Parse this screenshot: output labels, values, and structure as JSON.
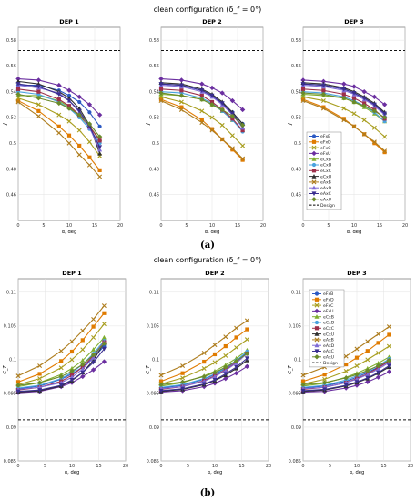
{
  "figure": {
    "title_a": "clean configuration (δ_f = 0°)",
    "title_b": "clean configuration (δ_f = 0°)",
    "caption_a": "(a)",
    "caption_b": "(b)"
  },
  "legend_labels": [
    "eFxB",
    "eFxD",
    "eFxC",
    "eFxU",
    "eCxB",
    "eCxD",
    "eCxC",
    "eCxU",
    "eAxB",
    "eAxD",
    "eAxC",
    "eAxU",
    "Design"
  ],
  "series_colors": [
    "#2b59c3",
    "#e07b00",
    "#a89e1f",
    "#6b2fa0",
    "#7fae2e",
    "#4aa3df",
    "#9d2f4a",
    "#2f2f2f",
    "#ae7d1e",
    "#7e6ad6",
    "#3a2e8f",
    "#6a8a2a",
    "#000000"
  ],
  "chart_data": [
    {
      "type": "line",
      "panel": "a1",
      "title": "DEP 1",
      "xlabel": "α, deg",
      "ylabel": "J",
      "xlim": [
        0,
        20
      ],
      "ylim": [
        0.44,
        0.59
      ],
      "yticks": [
        0.46,
        0.48,
        0.5,
        0.52,
        0.54,
        0.56,
        0.58
      ],
      "xticks": [
        0,
        5,
        10,
        15,
        20
      ],
      "x": [
        0,
        4,
        8,
        10,
        12,
        14,
        16
      ],
      "design": 0.572,
      "series": [
        {
          "name": "eFxB",
          "values": [
            0.545,
            0.545,
            0.541,
            0.537,
            0.532,
            0.524,
            0.513
          ]
        },
        {
          "name": "eFxD",
          "values": [
            0.533,
            0.525,
            0.513,
            0.506,
            0.498,
            0.489,
            0.479
          ]
        },
        {
          "name": "eFxC",
          "values": [
            0.535,
            0.53,
            0.522,
            0.517,
            0.51,
            0.501,
            0.49
          ]
        },
        {
          "name": "eFxU",
          "values": [
            0.55,
            0.549,
            0.545,
            0.541,
            0.536,
            0.53,
            0.522
          ]
        },
        {
          "name": "eCxB",
          "values": [
            0.537,
            0.537,
            0.533,
            0.528,
            0.521,
            0.513,
            0.503
          ]
        },
        {
          "name": "eCxD",
          "values": [
            0.54,
            0.538,
            0.532,
            0.527,
            0.52,
            0.511,
            0.5
          ]
        },
        {
          "name": "eCxC",
          "values": [
            0.542,
            0.54,
            0.534,
            0.529,
            0.522,
            0.513,
            0.502
          ]
        },
        {
          "name": "eCxU",
          "values": [
            0.548,
            0.546,
            0.54,
            0.535,
            0.527,
            0.514,
            0.492
          ]
        },
        {
          "name": "eAxB",
          "values": [
            0.532,
            0.521,
            0.508,
            0.5,
            0.491,
            0.483,
            0.474
          ]
        },
        {
          "name": "eAxD",
          "values": [
            0.545,
            0.543,
            0.539,
            0.533,
            0.524,
            0.512,
            0.495
          ]
        },
        {
          "name": "eAxC",
          "values": [
            0.546,
            0.544,
            0.538,
            0.533,
            0.525,
            0.513,
            0.497
          ]
        },
        {
          "name": "eAxU",
          "values": [
            0.538,
            0.535,
            0.531,
            0.527,
            0.522,
            0.515,
            0.505
          ]
        }
      ]
    },
    {
      "type": "line",
      "panel": "a2",
      "title": "DEP 2",
      "xlabel": "α, deg",
      "ylabel": "J",
      "xlim": [
        0,
        20
      ],
      "ylim": [
        0.44,
        0.59
      ],
      "yticks": [
        0.46,
        0.48,
        0.5,
        0.52,
        0.54,
        0.56,
        0.58
      ],
      "xticks": [
        0,
        5,
        10,
        15,
        20
      ],
      "x": [
        0,
        4,
        8,
        10,
        12,
        14,
        16
      ],
      "design": 0.572,
      "series": [
        {
          "name": "eFxB",
          "values": [
            0.546,
            0.545,
            0.541,
            0.537,
            0.531,
            0.524,
            0.515
          ]
        },
        {
          "name": "eFxD",
          "values": [
            0.534,
            0.528,
            0.518,
            0.511,
            0.503,
            0.495,
            0.487
          ]
        },
        {
          "name": "eFxC",
          "values": [
            0.536,
            0.532,
            0.525,
            0.52,
            0.514,
            0.506,
            0.498
          ]
        },
        {
          "name": "eFxU",
          "values": [
            0.55,
            0.549,
            0.546,
            0.543,
            0.539,
            0.533,
            0.526
          ]
        },
        {
          "name": "eCxB",
          "values": [
            0.538,
            0.537,
            0.534,
            0.53,
            0.525,
            0.518,
            0.51
          ]
        },
        {
          "name": "eCxD",
          "values": [
            0.54,
            0.539,
            0.535,
            0.531,
            0.525,
            0.518,
            0.509
          ]
        },
        {
          "name": "eCxC",
          "values": [
            0.542,
            0.541,
            0.537,
            0.532,
            0.526,
            0.519,
            0.51
          ]
        },
        {
          "name": "eCxU",
          "values": [
            0.547,
            0.546,
            0.542,
            0.538,
            0.532,
            0.524,
            0.515
          ]
        },
        {
          "name": "eAxB",
          "values": [
            0.533,
            0.526,
            0.516,
            0.51,
            0.503,
            0.496,
            0.488
          ]
        },
        {
          "name": "eAxD",
          "values": [
            0.545,
            0.544,
            0.54,
            0.536,
            0.53,
            0.522,
            0.512
          ]
        },
        {
          "name": "eAxC",
          "values": [
            0.546,
            0.545,
            0.541,
            0.537,
            0.531,
            0.523,
            0.513
          ]
        },
        {
          "name": "eAxU",
          "values": [
            0.539,
            0.537,
            0.534,
            0.53,
            0.526,
            0.521,
            0.514
          ]
        }
      ]
    },
    {
      "type": "line",
      "panel": "a3",
      "title": "DEP 3",
      "xlabel": "α, deg",
      "ylabel": "J",
      "xlim": [
        0,
        20
      ],
      "ylim": [
        0.44,
        0.59
      ],
      "yticks": [
        0.46,
        0.48,
        0.5,
        0.52,
        0.54,
        0.56,
        0.58
      ],
      "xticks": [
        0,
        5,
        10,
        15,
        20
      ],
      "x": [
        0,
        4,
        8,
        10,
        12,
        14,
        16
      ],
      "design": 0.572,
      "series": [
        {
          "name": "eFxB",
          "values": [
            0.546,
            0.545,
            0.542,
            0.539,
            0.535,
            0.53,
            0.523
          ]
        },
        {
          "name": "eFxD",
          "values": [
            0.534,
            0.528,
            0.519,
            0.513,
            0.507,
            0.5,
            0.493
          ]
        },
        {
          "name": "eFxC",
          "values": [
            0.536,
            0.533,
            0.527,
            0.523,
            0.518,
            0.512,
            0.505
          ]
        },
        {
          "name": "eFxU",
          "values": [
            0.549,
            0.548,
            0.546,
            0.544,
            0.54,
            0.536,
            0.53
          ]
        },
        {
          "name": "eCxB",
          "values": [
            0.538,
            0.537,
            0.535,
            0.532,
            0.528,
            0.523,
            0.517
          ]
        },
        {
          "name": "eCxD",
          "values": [
            0.54,
            0.539,
            0.536,
            0.533,
            0.529,
            0.524,
            0.517
          ]
        },
        {
          "name": "eCxC",
          "values": [
            0.542,
            0.541,
            0.538,
            0.535,
            0.531,
            0.526,
            0.519
          ]
        },
        {
          "name": "eCxU",
          "values": [
            0.547,
            0.546,
            0.543,
            0.54,
            0.536,
            0.531,
            0.524
          ]
        },
        {
          "name": "eAxB",
          "values": [
            0.533,
            0.527,
            0.518,
            0.513,
            0.507,
            0.501,
            0.494
          ]
        },
        {
          "name": "eAxD",
          "values": [
            0.545,
            0.544,
            0.541,
            0.538,
            0.534,
            0.529,
            0.522
          ]
        },
        {
          "name": "eAxC",
          "values": [
            0.546,
            0.545,
            0.542,
            0.539,
            0.535,
            0.53,
            0.523
          ]
        },
        {
          "name": "eAxU",
          "values": [
            0.539,
            0.538,
            0.535,
            0.532,
            0.529,
            0.525,
            0.52
          ]
        }
      ]
    },
    {
      "type": "line",
      "panel": "b1",
      "title": "DEP 1",
      "xlabel": "α, deg",
      "ylabel": "C_T",
      "xlim": [
        0,
        20
      ],
      "ylim": [
        0.085,
        0.112
      ],
      "yticks": [
        0.085,
        0.09,
        0.095,
        0.1,
        0.105,
        0.11
      ],
      "xticks": [
        0,
        5,
        10,
        15,
        20
      ],
      "x": [
        0,
        4,
        8,
        10,
        12,
        14,
        16
      ],
      "design": 0.0911,
      "series": [
        {
          "name": "eFxB",
          "values": [
            0.0957,
            0.0961,
            0.0971,
            0.0979,
            0.0989,
            0.1003,
            0.102
          ]
        },
        {
          "name": "eFxD",
          "values": [
            0.0967,
            0.0979,
            0.0998,
            0.1012,
            0.1029,
            0.1049,
            0.1069
          ]
        },
        {
          "name": "eFxC",
          "values": [
            0.0963,
            0.0972,
            0.0988,
            0.1,
            0.1015,
            0.1033,
            0.1053
          ]
        },
        {
          "name": "eFxU",
          "values": [
            0.0951,
            0.0953,
            0.096,
            0.0966,
            0.0975,
            0.0985,
            0.0997
          ]
        },
        {
          "name": "eCxB",
          "values": [
            0.096,
            0.0966,
            0.0978,
            0.0987,
            0.0999,
            0.1015,
            0.1033
          ]
        },
        {
          "name": "eCxD",
          "values": [
            0.0958,
            0.0962,
            0.0972,
            0.0981,
            0.0993,
            0.1009,
            0.1028
          ]
        },
        {
          "name": "eCxC",
          "values": [
            0.0955,
            0.0959,
            0.0968,
            0.0977,
            0.0989,
            0.1006,
            0.1026
          ]
        },
        {
          "name": "eCxU",
          "values": [
            0.0952,
            0.0954,
            0.0961,
            0.0969,
            0.0981,
            0.0999,
            0.1025
          ]
        },
        {
          "name": "eAxB",
          "values": [
            0.0976,
            0.0991,
            0.1013,
            0.1027,
            0.1043,
            0.106,
            0.108
          ]
        },
        {
          "name": "eAxD",
          "values": [
            0.0956,
            0.0959,
            0.0966,
            0.0974,
            0.0986,
            0.1003,
            0.1026
          ]
        },
        {
          "name": "eAxC",
          "values": [
            0.0953,
            0.0955,
            0.0962,
            0.097,
            0.0981,
            0.0996,
            0.1016
          ]
        },
        {
          "name": "eAxU",
          "values": [
            0.0962,
            0.0966,
            0.0975,
            0.0983,
            0.0993,
            0.1007,
            0.1024
          ]
        }
      ]
    },
    {
      "type": "line",
      "panel": "b2",
      "title": "DEP 2",
      "xlabel": "α, deg",
      "ylabel": "C_T",
      "xlim": [
        0,
        20
      ],
      "ylim": [
        0.085,
        0.112
      ],
      "yticks": [
        0.085,
        0.09,
        0.095,
        0.1,
        0.105,
        0.11
      ],
      "xticks": [
        0,
        5,
        10,
        15,
        20
      ],
      "x": [
        0,
        4,
        8,
        10,
        12,
        14,
        16
      ],
      "design": 0.0911,
      "series": [
        {
          "name": "eFxB",
          "values": [
            0.0958,
            0.0962,
            0.0971,
            0.0978,
            0.0987,
            0.0998,
            0.1011
          ]
        },
        {
          "name": "eFxD",
          "values": [
            0.0968,
            0.098,
            0.0997,
            0.1008,
            0.102,
            0.1033,
            0.1045
          ]
        },
        {
          "name": "eFxC",
          "values": [
            0.0964,
            0.0973,
            0.0987,
            0.0996,
            0.1006,
            0.1018,
            0.103
          ]
        },
        {
          "name": "eFxU",
          "values": [
            0.0952,
            0.0954,
            0.096,
            0.0965,
            0.0972,
            0.098,
            0.099
          ]
        },
        {
          "name": "eCxB",
          "values": [
            0.0961,
            0.0966,
            0.0976,
            0.0983,
            0.0992,
            0.1002,
            0.1014
          ]
        },
        {
          "name": "eCxD",
          "values": [
            0.0959,
            0.0963,
            0.0972,
            0.0979,
            0.0988,
            0.0999,
            0.1012
          ]
        },
        {
          "name": "eCxC",
          "values": [
            0.0956,
            0.096,
            0.0969,
            0.0976,
            0.0985,
            0.0996,
            0.1009
          ]
        },
        {
          "name": "eCxU",
          "values": [
            0.0953,
            0.0956,
            0.0963,
            0.0969,
            0.0977,
            0.0987,
            0.0999
          ]
        },
        {
          "name": "eAxB",
          "values": [
            0.0977,
            0.0991,
            0.101,
            0.1022,
            0.1034,
            0.1047,
            0.1058
          ]
        },
        {
          "name": "eAxD",
          "values": [
            0.0957,
            0.096,
            0.0968,
            0.0975,
            0.0984,
            0.0995,
            0.1009
          ]
        },
        {
          "name": "eAxC",
          "values": [
            0.0954,
            0.0957,
            0.0964,
            0.097,
            0.0979,
            0.0989,
            0.1002
          ]
        },
        {
          "name": "eAxU",
          "values": [
            0.0963,
            0.0967,
            0.0975,
            0.0981,
            0.0989,
            0.0998,
            0.1009
          ]
        }
      ]
    },
    {
      "type": "line",
      "panel": "b3",
      "title": "DEP 3",
      "xlabel": "α, deg",
      "ylabel": "C_T",
      "xlim": [
        0,
        20
      ],
      "ylim": [
        0.085,
        0.112
      ],
      "yticks": [
        0.085,
        0.09,
        0.095,
        0.1,
        0.105,
        0.11
      ],
      "xticks": [
        0,
        5,
        10,
        15,
        20
      ],
      "x": [
        0,
        4,
        8,
        10,
        12,
        14,
        16
      ],
      "design": 0.0911,
      "series": [
        {
          "name": "eFxB",
          "values": [
            0.0958,
            0.0961,
            0.0968,
            0.0974,
            0.0981,
            0.0989,
            0.0998
          ]
        },
        {
          "name": "eFxD",
          "values": [
            0.0968,
            0.0978,
            0.0993,
            0.1003,
            0.1013,
            0.1025,
            0.1037
          ]
        },
        {
          "name": "eFxC",
          "values": [
            0.0964,
            0.0971,
            0.0983,
            0.0991,
            0.1,
            0.101,
            0.102
          ]
        },
        {
          "name": "eFxU",
          "values": [
            0.0952,
            0.0953,
            0.0958,
            0.0962,
            0.0967,
            0.0974,
            0.0982
          ]
        },
        {
          "name": "eCxB",
          "values": [
            0.0961,
            0.0965,
            0.0974,
            0.098,
            0.0987,
            0.0995,
            0.1004
          ]
        },
        {
          "name": "eCxD",
          "values": [
            0.0959,
            0.0962,
            0.097,
            0.0976,
            0.0983,
            0.0991,
            0.1001
          ]
        },
        {
          "name": "eCxC",
          "values": [
            0.0956,
            0.0959,
            0.0966,
            0.0972,
            0.0979,
            0.0988,
            0.0998
          ]
        },
        {
          "name": "eCxU",
          "values": [
            0.0953,
            0.0955,
            0.0961,
            0.0966,
            0.0972,
            0.098,
            0.0989
          ]
        },
        {
          "name": "eAxB",
          "values": [
            0.0977,
            0.0989,
            0.1005,
            0.1016,
            0.1027,
            0.1038,
            0.1049
          ]
        },
        {
          "name": "eAxD",
          "values": [
            0.0957,
            0.0959,
            0.0966,
            0.0971,
            0.0978,
            0.0986,
            0.0996
          ]
        },
        {
          "name": "eAxC",
          "values": [
            0.0954,
            0.0956,
            0.0962,
            0.0967,
            0.0973,
            0.0981,
            0.0991
          ]
        },
        {
          "name": "eAxU",
          "values": [
            0.0963,
            0.0966,
            0.0973,
            0.0978,
            0.0984,
            0.0991,
            0.0999
          ]
        }
      ]
    }
  ]
}
